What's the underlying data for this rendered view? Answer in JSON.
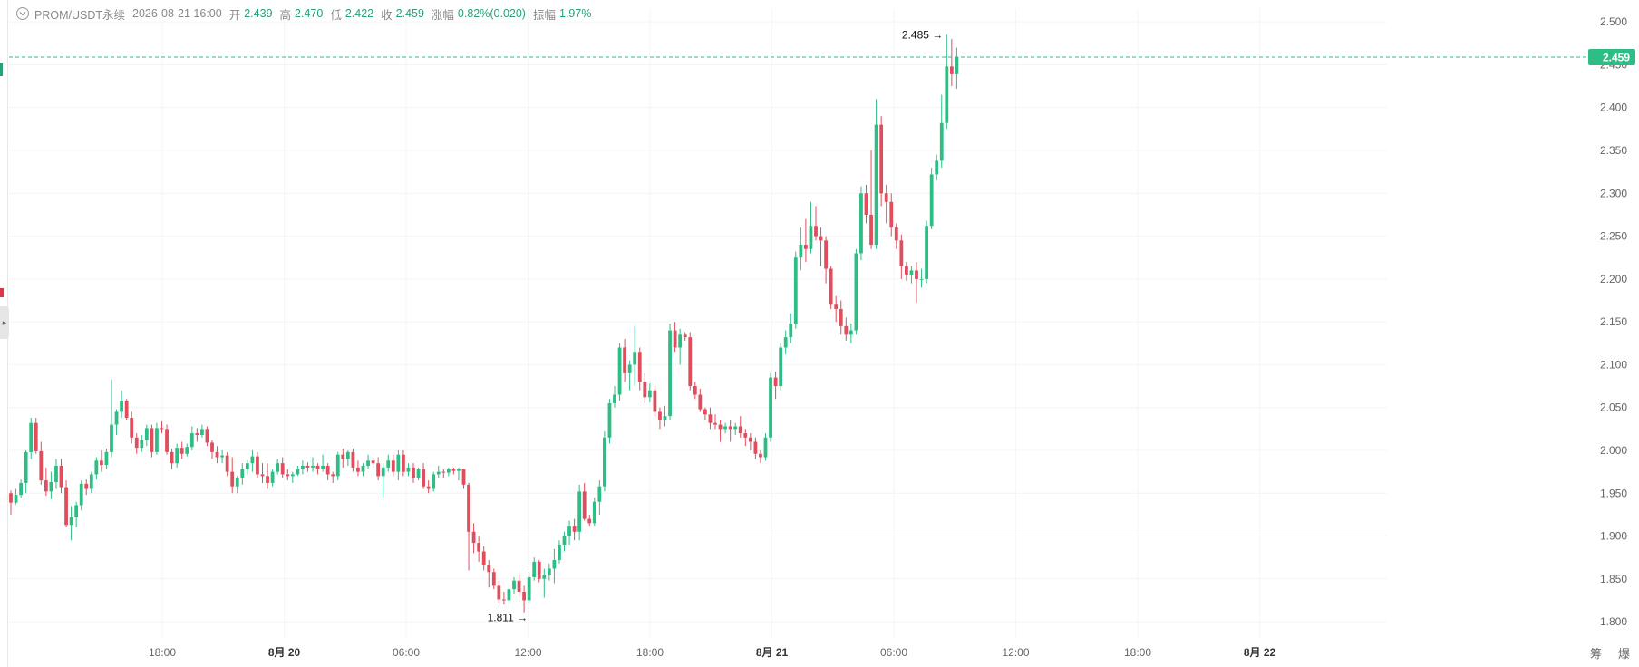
{
  "header": {
    "symbol": "PROM/USDT永续",
    "datetime": "2026-08-21 16:00",
    "open_label": "开",
    "open_value": "2.439",
    "high_label": "高",
    "high_value": "2.470",
    "low_label": "低",
    "low_value": "2.422",
    "close_label": "收",
    "close_value": "2.459",
    "change_label": "涨幅",
    "change_value": "0.82%(0.020)",
    "amplitude_label": "振幅",
    "amplitude_value": "1.97%"
  },
  "bottom_right": {
    "label_1": "筹",
    "label_2": "爆"
  },
  "colors": {
    "up": "#2ebd85",
    "down": "#e04d5d",
    "current_price_line": "#2ebd85",
    "grid": "#f2f2f2",
    "axis_text": "#666666"
  },
  "chart_data": {
    "type": "candlestick",
    "ylim": [
      1.78,
      2.515
    ],
    "y_ticks": [
      "2.500",
      "2.450",
      "2.400",
      "2.350",
      "2.300",
      "2.250",
      "2.200",
      "2.150",
      "2.100",
      "2.050",
      "2.000",
      "1.950",
      "1.900",
      "1.850",
      "1.800"
    ],
    "x_ticks": [
      "18:00",
      "8月 20",
      "06:00",
      "12:00",
      "18:00",
      "8月 21",
      "06:00",
      "12:00",
      "18:00",
      "8月 22"
    ],
    "current_price": "2.459",
    "max_label": "2.485",
    "min_label": "1.811",
    "candles": [
      [
        1.95,
        1.953,
        1.925,
        1.939
      ],
      [
        1.939,
        1.955,
        1.937,
        1.948
      ],
      [
        1.948,
        1.966,
        1.944,
        1.962
      ],
      [
        1.962,
        2.0,
        1.95,
        1.998
      ],
      [
        1.998,
        2.038,
        1.99,
        2.032
      ],
      [
        2.032,
        2.038,
        1.996,
        1.999
      ],
      [
        1.999,
        2.01,
        1.96,
        1.965
      ],
      [
        1.965,
        1.98,
        1.947,
        1.952
      ],
      [
        1.952,
        1.975,
        1.943,
        1.963
      ],
      [
        1.963,
        1.99,
        1.955,
        1.982
      ],
      [
        1.982,
        1.99,
        1.95,
        1.957
      ],
      [
        1.957,
        1.965,
        1.91,
        1.913
      ],
      [
        1.913,
        1.935,
        1.895,
        1.922
      ],
      [
        1.922,
        1.94,
        1.91,
        1.936
      ],
      [
        1.936,
        1.965,
        1.93,
        1.961
      ],
      [
        1.961,
        1.966,
        1.948,
        1.955
      ],
      [
        1.955,
        1.975,
        1.95,
        1.972
      ],
      [
        1.972,
        1.992,
        1.966,
        1.988
      ],
      [
        1.988,
        2.0,
        1.975,
        1.983
      ],
      [
        1.983,
        2.002,
        1.978,
        1.998
      ],
      [
        1.998,
        2.083,
        1.992,
        2.03
      ],
      [
        2.03,
        2.048,
        2.018,
        2.045
      ],
      [
        2.045,
        2.07,
        2.038,
        2.058
      ],
      [
        2.058,
        2.06,
        2.035,
        2.038
      ],
      [
        2.038,
        2.045,
        2.008,
        2.015
      ],
      [
        2.015,
        2.02,
        1.996,
        2.003
      ],
      [
        2.003,
        2.018,
        1.998,
        2.012
      ],
      [
        2.012,
        2.03,
        2.005,
        2.026
      ],
      [
        2.026,
        2.03,
        1.992,
        1.998
      ],
      [
        1.998,
        2.032,
        1.995,
        2.026
      ],
      [
        2.026,
        2.034,
        2.02,
        2.025
      ],
      [
        2.025,
        2.03,
        1.995,
        1.998
      ],
      [
        1.998,
        2.002,
        1.978,
        1.985
      ],
      [
        1.985,
        2.008,
        1.98,
        2.003
      ],
      [
        2.003,
        2.01,
        1.99,
        1.996
      ],
      [
        1.996,
        2.008,
        1.993,
        2.004
      ],
      [
        2.004,
        2.028,
        2.0,
        2.02
      ],
      [
        2.02,
        2.026,
        2.01,
        2.018
      ],
      [
        2.018,
        2.03,
        2.015,
        2.025
      ],
      [
        2.025,
        2.028,
        2.005,
        2.009
      ],
      [
        2.009,
        2.012,
        1.99,
        1.998
      ],
      [
        1.998,
        2.005,
        1.985,
        1.992
      ],
      [
        1.992,
        2.0,
        1.985,
        1.994
      ],
      [
        1.994,
        1.998,
        1.97,
        1.975
      ],
      [
        1.975,
        1.992,
        1.95,
        1.958
      ],
      [
        1.958,
        1.97,
        1.95,
        1.968
      ],
      [
        1.968,
        1.985,
        1.96,
        1.978
      ],
      [
        1.978,
        1.988,
        1.972,
        1.985
      ],
      [
        1.985,
        2.0,
        1.975,
        1.993
      ],
      [
        1.993,
        1.998,
        1.968,
        1.972
      ],
      [
        1.972,
        1.985,
        1.962,
        1.97
      ],
      [
        1.97,
        1.985,
        1.955,
        1.962
      ],
      [
        1.962,
        1.978,
        1.958,
        1.975
      ],
      [
        1.975,
        1.99,
        1.972,
        1.985
      ],
      [
        1.985,
        1.992,
        1.968,
        1.972
      ],
      [
        1.972,
        1.978,
        1.965,
        1.97
      ],
      [
        1.97,
        1.975,
        1.962,
        1.972
      ],
      [
        1.972,
        1.982,
        1.97,
        1.978
      ],
      [
        1.978,
        1.988,
        1.972,
        1.982
      ],
      [
        1.982,
        1.986,
        1.975,
        1.98
      ],
      [
        1.98,
        1.992,
        1.975,
        1.982
      ],
      [
        1.982,
        1.985,
        1.972,
        1.978
      ],
      [
        1.978,
        1.995,
        1.975,
        1.982
      ],
      [
        1.982,
        1.985,
        1.965,
        1.972
      ],
      [
        1.972,
        1.975,
        1.962,
        1.97
      ],
      [
        1.97,
        1.998,
        1.965,
        1.995
      ],
      [
        1.995,
        2.002,
        1.98,
        1.99
      ],
      [
        1.99,
        2.0,
        1.982,
        1.998
      ],
      [
        1.998,
        2.002,
        1.975,
        1.98
      ],
      [
        1.98,
        1.988,
        1.97,
        1.975
      ],
      [
        1.975,
        1.985,
        1.97,
        1.982
      ],
      [
        1.982,
        1.995,
        1.978,
        1.988
      ],
      [
        1.988,
        1.992,
        1.98,
        1.985
      ],
      [
        1.985,
        1.992,
        1.965,
        1.97
      ],
      [
        1.97,
        1.985,
        1.945,
        1.98
      ],
      [
        1.98,
        1.995,
        1.975,
        1.988
      ],
      [
        1.988,
        1.995,
        1.97,
        1.975
      ],
      [
        1.975,
        2.0,
        1.965,
        1.995
      ],
      [
        1.995,
        2.0,
        1.97,
        1.975
      ],
      [
        1.975,
        1.985,
        1.97,
        1.98
      ],
      [
        1.98,
        1.985,
        1.962,
        1.968
      ],
      [
        1.968,
        1.98,
        1.965,
        1.978
      ],
      [
        1.978,
        1.985,
        1.955,
        1.958
      ],
      [
        1.958,
        1.965,
        1.95,
        1.955
      ],
      [
        1.955,
        1.975,
        1.952,
        1.972
      ],
      [
        1.972,
        1.982,
        1.968,
        1.975
      ],
      [
        1.975,
        1.978,
        1.968,
        1.974
      ],
      [
        1.974,
        1.98,
        1.97,
        1.978
      ],
      [
        1.978,
        1.98,
        1.972,
        1.976
      ],
      [
        1.976,
        1.98,
        1.965,
        1.978
      ],
      [
        1.978,
        1.978,
        1.955,
        1.96
      ],
      [
        1.96,
        1.962,
        1.86,
        1.905
      ],
      [
        1.905,
        1.915,
        1.88,
        1.892
      ],
      [
        1.892,
        1.9,
        1.87,
        1.882
      ],
      [
        1.882,
        1.888,
        1.86,
        1.866
      ],
      [
        1.866,
        1.872,
        1.84,
        1.858
      ],
      [
        1.858,
        1.862,
        1.838,
        1.842
      ],
      [
        1.842,
        1.848,
        1.822,
        1.826
      ],
      [
        1.826,
        1.835,
        1.82,
        1.825
      ],
      [
        1.825,
        1.842,
        1.815,
        1.838
      ],
      [
        1.838,
        1.852,
        1.832,
        1.848
      ],
      [
        1.848,
        1.855,
        1.83,
        1.835
      ],
      [
        1.835,
        1.842,
        1.811,
        1.825
      ],
      [
        1.825,
        1.858,
        1.822,
        1.852
      ],
      [
        1.852,
        1.875,
        1.848,
        1.87
      ],
      [
        1.87,
        1.872,
        1.846,
        1.85
      ],
      [
        1.85,
        1.862,
        1.828,
        1.855
      ],
      [
        1.855,
        1.868,
        1.848,
        1.862
      ],
      [
        1.862,
        1.885,
        1.845,
        1.872
      ],
      [
        1.872,
        1.895,
        1.868,
        1.89
      ],
      [
        1.89,
        1.905,
        1.882,
        1.9
      ],
      [
        1.9,
        1.918,
        1.89,
        1.912
      ],
      [
        1.912,
        1.92,
        1.895,
        1.905
      ],
      [
        1.905,
        1.96,
        1.895,
        1.952
      ],
      [
        1.952,
        1.962,
        1.918,
        1.92
      ],
      [
        1.92,
        1.925,
        1.912,
        1.915
      ],
      [
        1.915,
        1.945,
        1.912,
        1.94
      ],
      [
        1.94,
        1.965,
        1.925,
        1.958
      ],
      [
        1.958,
        2.022,
        1.952,
        2.015
      ],
      [
        2.015,
        2.06,
        2.008,
        2.055
      ],
      [
        2.055,
        2.075,
        2.05,
        2.065
      ],
      [
        2.065,
        2.125,
        2.058,
        2.12
      ],
      [
        2.12,
        2.13,
        2.08,
        2.09
      ],
      [
        2.09,
        2.105,
        2.07,
        2.1
      ],
      [
        2.1,
        2.145,
        2.075,
        2.115
      ],
      [
        2.115,
        2.12,
        2.07,
        2.08
      ],
      [
        2.08,
        2.09,
        2.055,
        2.062
      ],
      [
        2.062,
        2.078,
        2.056,
        2.07
      ],
      [
        2.07,
        2.075,
        2.04,
        2.045
      ],
      [
        2.045,
        2.05,
        2.025,
        2.035
      ],
      [
        2.035,
        2.052,
        2.028,
        2.04
      ],
      [
        2.04,
        2.148,
        2.035,
        2.14
      ],
      [
        2.14,
        2.15,
        2.115,
        2.12
      ],
      [
        2.12,
        2.142,
        2.1,
        2.135
      ],
      [
        2.135,
        2.138,
        2.128,
        2.132
      ],
      [
        2.132,
        2.138,
        2.07,
        2.075
      ],
      [
        2.075,
        2.08,
        2.06,
        2.065
      ],
      [
        2.065,
        2.072,
        2.045,
        2.048
      ],
      [
        2.048,
        2.05,
        2.035,
        2.042
      ],
      [
        2.042,
        2.05,
        2.025,
        2.032
      ],
      [
        2.032,
        2.042,
        2.025,
        2.03
      ],
      [
        2.03,
        2.035,
        2.01,
        2.025
      ],
      [
        2.025,
        2.032,
        2.02,
        2.028
      ],
      [
        2.028,
        2.035,
        2.01,
        2.025
      ],
      [
        2.025,
        2.032,
        2.018,
        2.028
      ],
      [
        2.028,
        2.04,
        2.015,
        2.02
      ],
      [
        2.02,
        2.025,
        2.005,
        2.015
      ],
      [
        2.015,
        2.02,
        2.0,
        2.01
      ],
      [
        2.01,
        2.015,
        1.99,
        1.996
      ],
      [
        1.996,
        2.0,
        1.985,
        1.992
      ],
      [
        1.992,
        2.02,
        1.988,
        2.015
      ],
      [
        2.015,
        2.09,
        2.01,
        2.085
      ],
      [
        2.085,
        2.092,
        2.06,
        2.075
      ],
      [
        2.075,
        2.125,
        2.07,
        2.12
      ],
      [
        2.12,
        2.14,
        2.112,
        2.132
      ],
      [
        2.132,
        2.16,
        2.125,
        2.148
      ],
      [
        2.148,
        2.232,
        2.142,
        2.225
      ],
      [
        2.225,
        2.26,
        2.21,
        2.24
      ],
      [
        2.24,
        2.27,
        2.22,
        2.235
      ],
      [
        2.235,
        2.29,
        2.23,
        2.262
      ],
      [
        2.262,
        2.285,
        2.245,
        2.25
      ],
      [
        2.25,
        2.26,
        2.215,
        2.245
      ],
      [
        2.245,
        2.25,
        2.195,
        2.212
      ],
      [
        2.212,
        2.215,
        2.165,
        2.17
      ],
      [
        2.17,
        2.18,
        2.15,
        2.165
      ],
      [
        2.165,
        2.175,
        2.135,
        2.145
      ],
      [
        2.145,
        2.155,
        2.128,
        2.135
      ],
      [
        2.135,
        2.148,
        2.125,
        2.14
      ],
      [
        2.14,
        2.235,
        2.135,
        2.23
      ],
      [
        2.23,
        2.308,
        2.222,
        2.3
      ],
      [
        2.3,
        2.31,
        2.265,
        2.275
      ],
      [
        2.275,
        2.35,
        2.235,
        2.24
      ],
      [
        2.24,
        2.41,
        2.235,
        2.38
      ],
      [
        2.38,
        2.39,
        2.285,
        2.3
      ],
      [
        2.3,
        2.31,
        2.265,
        2.29
      ],
      [
        2.29,
        2.3,
        2.25,
        2.26
      ],
      [
        2.26,
        2.265,
        2.235,
        2.245
      ],
      [
        2.245,
        2.252,
        2.2,
        2.215
      ],
      [
        2.215,
        2.22,
        2.198,
        2.205
      ],
      [
        2.205,
        2.215,
        2.195,
        2.21
      ],
      [
        2.21,
        2.22,
        2.172,
        2.2
      ],
      [
        2.2,
        2.212,
        2.19,
        2.2
      ],
      [
        2.2,
        2.268,
        2.195,
        2.262
      ],
      [
        2.262,
        2.33,
        2.258,
        2.322
      ],
      [
        2.322,
        2.345,
        2.315,
        2.338
      ],
      [
        2.338,
        2.415,
        2.33,
        2.382
      ],
      [
        2.382,
        2.485,
        2.375,
        2.448
      ],
      [
        2.448,
        2.48,
        2.425,
        2.439
      ],
      [
        2.439,
        2.47,
        2.422,
        2.459
      ]
    ]
  }
}
